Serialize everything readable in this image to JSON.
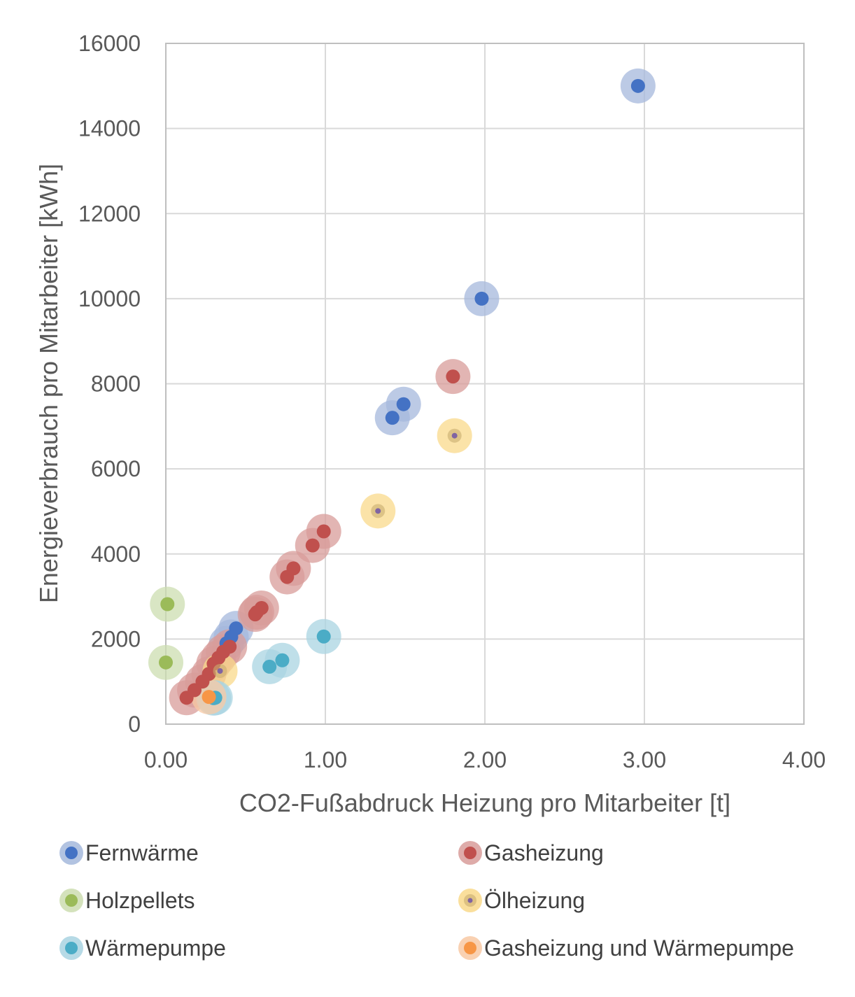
{
  "chart_data": {
    "type": "scatter",
    "title": "",
    "xlabel": "CO2-Fußabdruck Heizung pro Mitarbeiter [t]",
    "ylabel": "Energieverbrauch pro Mitarbeiter [kWh]",
    "xlim": [
      0,
      4
    ],
    "ylim": [
      0,
      16000
    ],
    "xticks": [
      0,
      1,
      2,
      3,
      4
    ],
    "xtick_labels": [
      "0.00",
      "1.00",
      "2.00",
      "3.00",
      "4.00"
    ],
    "yticks": [
      0,
      2000,
      4000,
      6000,
      8000,
      10000,
      12000,
      14000,
      16000
    ],
    "ytick_labels": [
      "0",
      "2000",
      "4000",
      "6000",
      "8000",
      "10000",
      "12000",
      "14000",
      "16000"
    ],
    "grid": true,
    "legend_position": "bottom",
    "series": [
      {
        "name": "Fernwärme",
        "color": "#4472C4",
        "halo": "#A5B8DC",
        "points": [
          [
            2.96,
            15000
          ],
          [
            1.98,
            10000
          ],
          [
            1.49,
            7520
          ],
          [
            1.42,
            7200
          ],
          [
            0.44,
            2250
          ],
          [
            0.41,
            2050
          ],
          [
            0.38,
            1900
          ]
        ]
      },
      {
        "name": "Gasheizung",
        "color": "#C0504D",
        "halo": "#D89C9A",
        "points": [
          [
            1.8,
            8170
          ],
          [
            0.99,
            4530
          ],
          [
            0.92,
            4200
          ],
          [
            0.8,
            3660
          ],
          [
            0.76,
            3460
          ],
          [
            0.6,
            2730
          ],
          [
            0.57,
            2630
          ],
          [
            0.56,
            2580
          ],
          [
            0.4,
            1820
          ],
          [
            0.36,
            1700
          ],
          [
            0.33,
            1560
          ],
          [
            0.3,
            1420
          ],
          [
            0.27,
            1180
          ],
          [
            0.23,
            1000
          ],
          [
            0.18,
            800
          ],
          [
            0.13,
            620
          ]
        ]
      },
      {
        "name": "Holzpellets",
        "color": "#9BBB59",
        "halo": "#CCDDB0",
        "points": [
          [
            0.01,
            2820
          ],
          [
            0.0,
            1450
          ]
        ]
      },
      {
        "name": "Ölheizung",
        "color": "#8064A2",
        "halo": "#F9D98B",
        "points": [
          [
            1.81,
            6780
          ],
          [
            1.33,
            5010
          ],
          [
            0.34,
            1250
          ]
        ]
      },
      {
        "name": "Wärmepumpe",
        "color": "#4BACC6",
        "halo": "#A9D4E2",
        "points": [
          [
            0.99,
            2060
          ],
          [
            0.73,
            1500
          ],
          [
            0.65,
            1350
          ],
          [
            0.31,
            620
          ],
          [
            0.3,
            610
          ]
        ]
      },
      {
        "name": "Gasheizung und Wärmepumpe",
        "color": "#F79646",
        "halo": "#F8C9A4",
        "points": [
          [
            0.27,
            640
          ]
        ]
      }
    ]
  }
}
